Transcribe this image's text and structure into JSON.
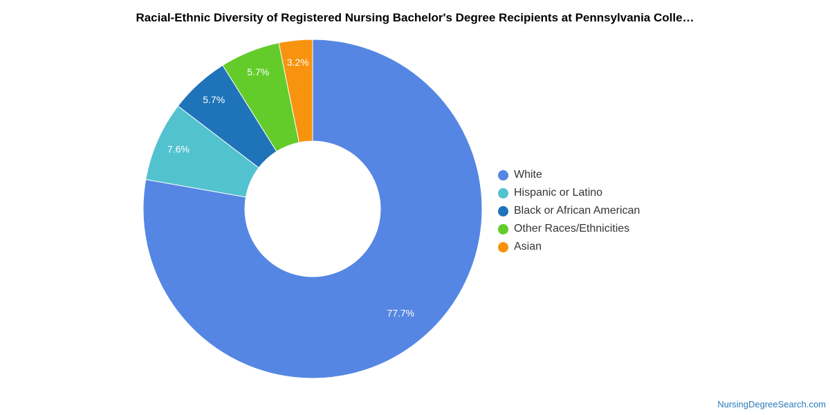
{
  "chart_data": {
    "type": "pie",
    "title": "Racial-Ethnic Diversity of Registered Nursing Bachelor's Degree Recipients at Pennsylvania Colle…",
    "donut": true,
    "legend_position": "right",
    "slices": [
      {
        "name": "White",
        "value": 77.7,
        "label": "77.7%",
        "color": "#5586e3"
      },
      {
        "name": "Hispanic or Latino",
        "value": 7.6,
        "label": "7.6%",
        "color": "#52c2cf"
      },
      {
        "name": "Black or African American",
        "value": 5.7,
        "label": "5.7%",
        "color": "#1f73b8"
      },
      {
        "name": "Other Races/Ethnicities",
        "value": 5.7,
        "label": "5.7%",
        "color": "#63cc2a"
      },
      {
        "name": "Asian",
        "value": 3.2,
        "label": "3.2%",
        "color": "#f7930f"
      }
    ]
  },
  "footer": {
    "source": "NursingDegreeSearch.com"
  }
}
